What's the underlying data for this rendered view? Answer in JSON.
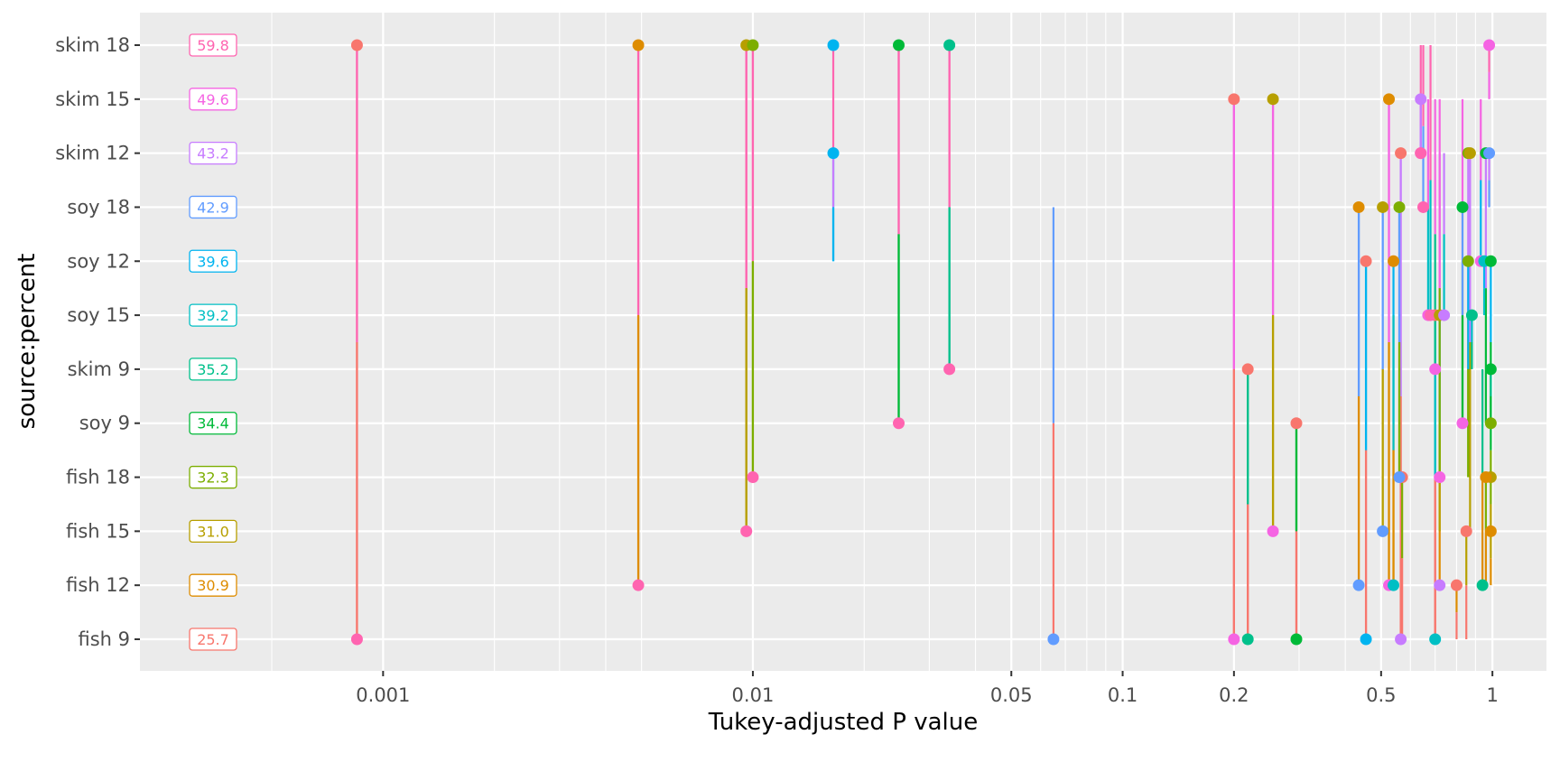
{
  "chart_data": {
    "type": "pwpp",
    "title": "",
    "xlabel": "Tukey-adjusted P value",
    "ylabel": "source:percent",
    "x_scale": "log",
    "xlim": [
      0.00022,
      1.4
    ],
    "x_ticks": [
      {
        "value": 0.001,
        "label": "0.001"
      },
      {
        "value": 0.01,
        "label": "0.01"
      },
      {
        "value": 0.05,
        "label": "0.05"
      },
      {
        "value": 0.1,
        "label": "0.1"
      },
      {
        "value": 0.2,
        "label": "0.2"
      },
      {
        "value": 0.5,
        "label": "0.5"
      },
      {
        "value": 1,
        "label": "1"
      }
    ],
    "x_minor_ticks": [
      0.0005,
      0.002,
      0.003,
      0.004,
      0.005,
      0.02,
      0.03,
      0.04,
      0.06,
      0.07,
      0.08,
      0.09,
      0.3,
      0.4,
      0.6,
      0.7,
      0.8,
      0.9
    ],
    "grid": true,
    "legend": "none",
    "groups": [
      {
        "label": "fish 9",
        "mean": "25.7",
        "color": "#F8766D"
      },
      {
        "label": "fish 12",
        "mean": "30.9",
        "color": "#DE8C00"
      },
      {
        "label": "fish 15",
        "mean": "31.0",
        "color": "#B79F00"
      },
      {
        "label": "fish 18",
        "mean": "32.3",
        "color": "#7CAE00"
      },
      {
        "label": "soy 9",
        "mean": "34.4",
        "color": "#00BA38"
      },
      {
        "label": "skim 9",
        "mean": "35.2",
        "color": "#00C08B"
      },
      {
        "label": "soy 15",
        "mean": "39.2",
        "color": "#00BFC4"
      },
      {
        "label": "soy 12",
        "mean": "39.6",
        "color": "#00B4F0"
      },
      {
        "label": "soy 18",
        "mean": "42.9",
        "color": "#619CFF"
      },
      {
        "label": "skim 12",
        "mean": "43.2",
        "color": "#C77CFF"
      },
      {
        "label": "skim 15",
        "mean": "49.6",
        "color": "#F564E3"
      },
      {
        "label": "skim 18",
        "mean": "59.8",
        "color": "#FF64B0"
      }
    ],
    "comparisons": [
      {
        "a": 0,
        "b": 11,
        "p": 0.00085
      },
      {
        "a": 1,
        "b": 11,
        "p": 0.0049
      },
      {
        "a": 2,
        "b": 11,
        "p": 0.0096
      },
      {
        "a": 3,
        "b": 11,
        "p": 0.01
      },
      {
        "a": 7,
        "b": 11,
        "p": 0.0165
      },
      {
        "a": 4,
        "b": 11,
        "p": 0.0248
      },
      {
        "a": 5,
        "b": 11,
        "p": 0.034
      },
      {
        "a": 0,
        "b": 10,
        "p": 0.2
      },
      {
        "a": 2,
        "b": 10,
        "p": 0.255
      },
      {
        "a": 7,
        "b": 9,
        "p": 0.0165
      },
      {
        "a": 8,
        "b": 0,
        "p": 0.065
      },
      {
        "a": 11,
        "b": 5,
        "p": 0.034
      },
      {
        "a": 11,
        "b": 4,
        "p": 0.0248
      },
      {
        "a": 11,
        "b": 3,
        "p": 0.01
      },
      {
        "a": 11,
        "b": 2,
        "p": 0.0096
      },
      {
        "a": 11,
        "b": 1,
        "p": 0.0049
      },
      {
        "a": 11,
        "b": 0,
        "p": 0.00085
      },
      {
        "a": 0,
        "b": 5,
        "p": 0.218
      },
      {
        "a": 0,
        "b": 4,
        "p": 0.295
      },
      {
        "a": 10,
        "b": 0,
        "p": 0.2
      },
      {
        "a": 6,
        "b": 0,
        "p": 0.7
      },
      {
        "a": 7,
        "b": 0,
        "p": 0.455
      },
      {
        "a": 4,
        "b": 0,
        "p": 0.295
      },
      {
        "a": 5,
        "b": 0,
        "p": 0.218
      },
      {
        "a": 9,
        "b": 0,
        "p": 0.565
      },
      {
        "a": 10,
        "b": 2,
        "p": 0.255
      },
      {
        "a": 8,
        "b": 1,
        "p": 0.435
      },
      {
        "a": 1,
        "b": 10,
        "p": 0.525
      },
      {
        "a": 1,
        "b": 8,
        "p": 0.435
      },
      {
        "a": 0,
        "b": 7,
        "p": 0.455
      },
      {
        "a": 8,
        "b": 2,
        "p": 0.505
      },
      {
        "a": 2,
        "b": 8,
        "p": 0.505
      },
      {
        "a": 0,
        "b": 9,
        "p": 0.565
      },
      {
        "a": 10,
        "b": 1,
        "p": 0.525
      },
      {
        "a": 1,
        "b": 7,
        "p": 0.54
      },
      {
        "a": 3,
        "b": 8,
        "p": 0.56
      },
      {
        "a": 0,
        "b": 3,
        "p": 0.57
      },
      {
        "a": 8,
        "b": 3,
        "p": 0.56
      },
      {
        "a": 6,
        "b": 1,
        "p": 0.54
      },
      {
        "a": 0,
        "b": 6,
        "p": 0.7
      },
      {
        "a": 10,
        "b": 9,
        "p": 0.64
      },
      {
        "a": 9,
        "b": 10,
        "p": 0.64
      },
      {
        "a": 9,
        "b": 1,
        "p": 0.72
      },
      {
        "a": 10,
        "b": 5,
        "p": 0.7
      },
      {
        "a": 10,
        "b": 6,
        "p": 0.67
      },
      {
        "a": 11,
        "b": 9,
        "p": 0.64
      },
      {
        "a": 11,
        "b": 8,
        "p": 0.65
      },
      {
        "a": 11,
        "b": 6,
        "p": 0.68
      },
      {
        "a": 2,
        "b": 6,
        "p": 0.72
      },
      {
        "a": 10,
        "b": 3,
        "p": 0.72
      },
      {
        "a": 9,
        "b": 6,
        "p": 0.74
      },
      {
        "a": 10,
        "b": 4,
        "p": 0.83
      },
      {
        "a": 10,
        "b": 7,
        "p": 0.93
      },
      {
        "a": 10,
        "b": 11,
        "p": 0.98
      },
      {
        "a": 3,
        "b": 9,
        "p": 0.86
      },
      {
        "a": 2,
        "b": 9,
        "p": 0.87
      },
      {
        "a": 4,
        "b": 9,
        "p": 0.96
      },
      {
        "a": 8,
        "b": 9,
        "p": 0.98
      },
      {
        "a": 4,
        "b": 8,
        "p": 0.83
      },
      {
        "a": 3,
        "b": 7,
        "p": 0.86
      },
      {
        "a": 6,
        "b": 7,
        "p": 0.95
      },
      {
        "a": 4,
        "b": 7,
        "p": 0.99
      },
      {
        "a": 5,
        "b": 6,
        "p": 0.88
      },
      {
        "a": 4,
        "b": 5,
        "p": 0.99
      },
      {
        "a": 3,
        "b": 4,
        "p": 0.99
      },
      {
        "a": 1,
        "b": 2,
        "p": 0.99
      },
      {
        "a": 2,
        "b": 3,
        "p": 0.99
      },
      {
        "a": 1,
        "b": 3,
        "p": 0.96
      },
      {
        "a": 0,
        "b": 2,
        "p": 0.85
      },
      {
        "a": 0,
        "b": 1,
        "p": 0.8
      },
      {
        "a": 5,
        "b": 1,
        "p": 0.94
      }
    ]
  }
}
